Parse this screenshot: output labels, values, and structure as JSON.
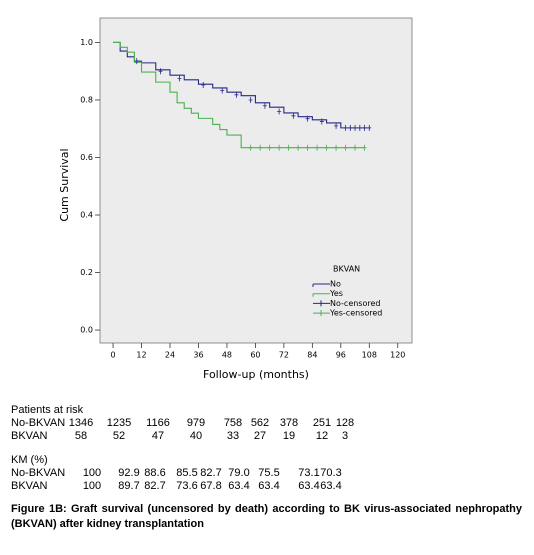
{
  "chart_data": {
    "type": "step",
    "xlabel": "Follow-up (months)",
    "ylabel": "Cum Survival",
    "xlim": [
      -5.5,
      126
    ],
    "xticks": [
      0,
      12,
      24,
      36,
      48,
      60,
      72,
      84,
      96,
      108,
      120
    ],
    "ylim": [
      -0.045,
      1.085
    ],
    "yticks": [
      {
        "value": 0,
        "label": "0.0"
      },
      0.2,
      0.4,
      0.6,
      0.8,
      {
        "value": 1,
        "label": "1.0"
      }
    ],
    "legend_title": "BKVAN",
    "legend": "lower right",
    "series": [
      {
        "name": "No",
        "color": "#26268a",
        "marker": "line",
        "x": [
          0,
          3,
          6,
          9,
          12,
          18,
          24,
          30,
          36,
          42,
          48,
          54,
          60,
          66,
          72,
          78,
          84,
          90,
          96,
          102,
          108
        ],
        "values": [
          1.0,
          0.97,
          0.95,
          0.935,
          0.929,
          0.905,
          0.886,
          0.87,
          0.855,
          0.842,
          0.827,
          0.815,
          0.79,
          0.775,
          0.755,
          0.742,
          0.731,
          0.72,
          0.703,
          0.703,
          0.703
        ]
      },
      {
        "name": "Yes",
        "color": "#4caf50",
        "marker": "line",
        "x": [
          0,
          3,
          6,
          9,
          12,
          18,
          24,
          27,
          30,
          33,
          36,
          42,
          45,
          48,
          54,
          106
        ],
        "values": [
          1.0,
          0.983,
          0.966,
          0.931,
          0.897,
          0.862,
          0.827,
          0.79,
          0.771,
          0.754,
          0.736,
          0.715,
          0.697,
          0.678,
          0.634,
          0.634
        ]
      },
      {
        "name": "No-censored",
        "color": "#26268a",
        "marker": "+",
        "x": [
          10,
          20,
          28,
          38,
          46,
          52,
          58,
          64,
          70,
          76,
          82,
          88,
          94,
          98,
          100,
          102,
          104,
          106,
          108
        ],
        "values": [
          0.935,
          0.9,
          0.875,
          0.852,
          0.833,
          0.818,
          0.8,
          0.78,
          0.76,
          0.745,
          0.735,
          0.725,
          0.71,
          0.703,
          0.703,
          0.703,
          0.703,
          0.703,
          0.703
        ]
      },
      {
        "name": "Yes-censored",
        "color": "#4caf50",
        "marker": "+",
        "x": [
          58,
          62,
          66,
          70,
          74,
          78,
          82,
          86,
          90,
          94,
          98,
          102,
          106
        ],
        "values": [
          0.634,
          0.634,
          0.634,
          0.634,
          0.634,
          0.634,
          0.634,
          0.634,
          0.634,
          0.634,
          0.634,
          0.634,
          0.634
        ]
      }
    ]
  },
  "risk_table": {
    "title": "Patients at risk",
    "rows": [
      [
        "No-BKVAN",
        "1346",
        "1235",
        "1166",
        "979",
        "758",
        "562",
        "378",
        "251",
        "128"
      ],
      [
        "BKVAN",
        "58",
        "52",
        "47",
        "40",
        "33",
        "27",
        "19",
        "12",
        "3"
      ]
    ]
  },
  "km_table": {
    "title": "KM (%)",
    "rows": [
      [
        "No-BKVAN",
        "100",
        "92.9",
        "88.6",
        "85.5",
        "82.7",
        "79.0",
        "75.5",
        "73.1",
        "70.3"
      ],
      [
        "BKVAN",
        "100",
        "89.7",
        "82.7",
        "73.6",
        "67.8",
        "63.4",
        "63.4",
        "63.4",
        "63.4"
      ]
    ]
  },
  "caption": "Figure 1B: Graft survival (uncensored by death) according to BK virus-associated nephropathy (BKVAN) after kidney transplantation"
}
